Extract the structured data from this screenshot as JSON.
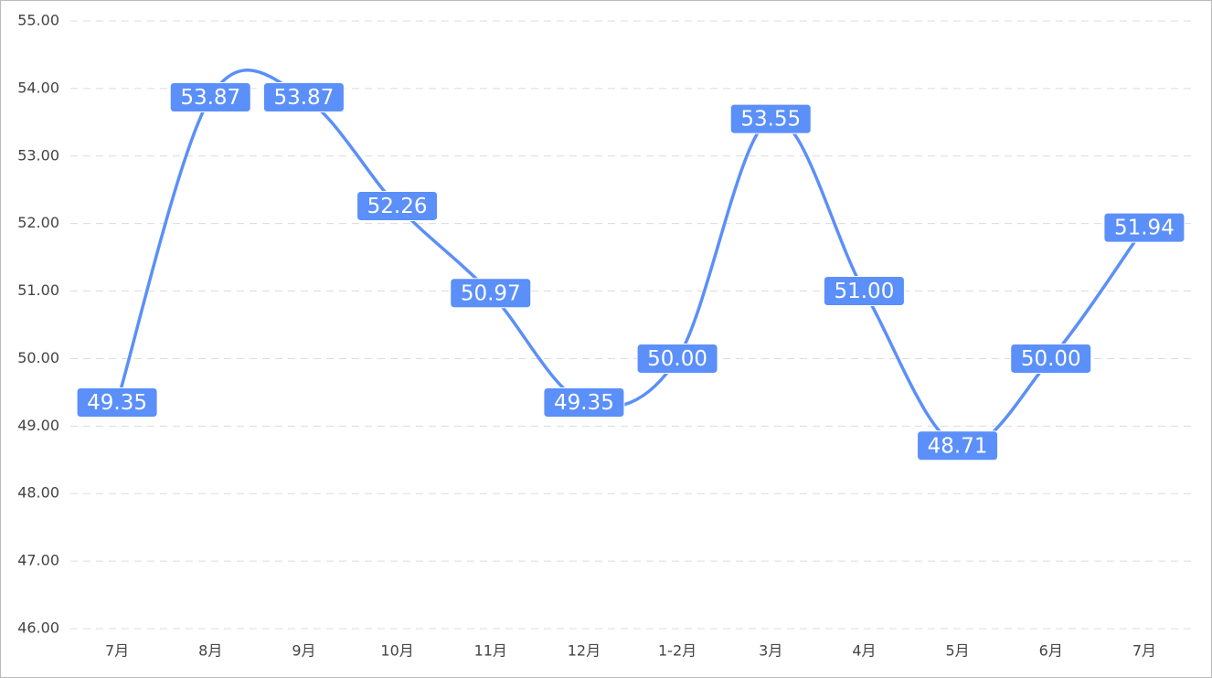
{
  "chart_data": {
    "type": "line",
    "categories": [
      "7月",
      "8月",
      "9月",
      "10月",
      "11月",
      "12月",
      "1-2月",
      "3月",
      "4月",
      "5月",
      "6月",
      "7月"
    ],
    "values": [
      49.35,
      53.87,
      53.87,
      52.26,
      50.97,
      49.35,
      50.0,
      53.55,
      51.0,
      48.71,
      50.0,
      51.94
    ],
    "value_labels": [
      "49.35",
      "53.87",
      "53.87",
      "52.26",
      "50.97",
      "49.35",
      "50.00",
      "53.55",
      "51.00",
      "48.71",
      "50.00",
      "51.94"
    ],
    "color": "#5b8ff9",
    "ylim": [
      46,
      55
    ],
    "yticks": [
      {
        "value": 46,
        "label": "46.00"
      },
      {
        "value": 47,
        "label": "47.00"
      },
      {
        "value": 48,
        "label": "48.00"
      },
      {
        "value": 49,
        "label": "49.00"
      },
      {
        "value": 50,
        "label": "50.00"
      },
      {
        "value": 51,
        "label": "51.00"
      },
      {
        "value": 52,
        "label": "52.00"
      },
      {
        "value": 53,
        "label": "53.00"
      },
      {
        "value": 54,
        "label": "54.00"
      },
      {
        "value": 55,
        "label": "55.00"
      }
    ],
    "grid": true
  }
}
